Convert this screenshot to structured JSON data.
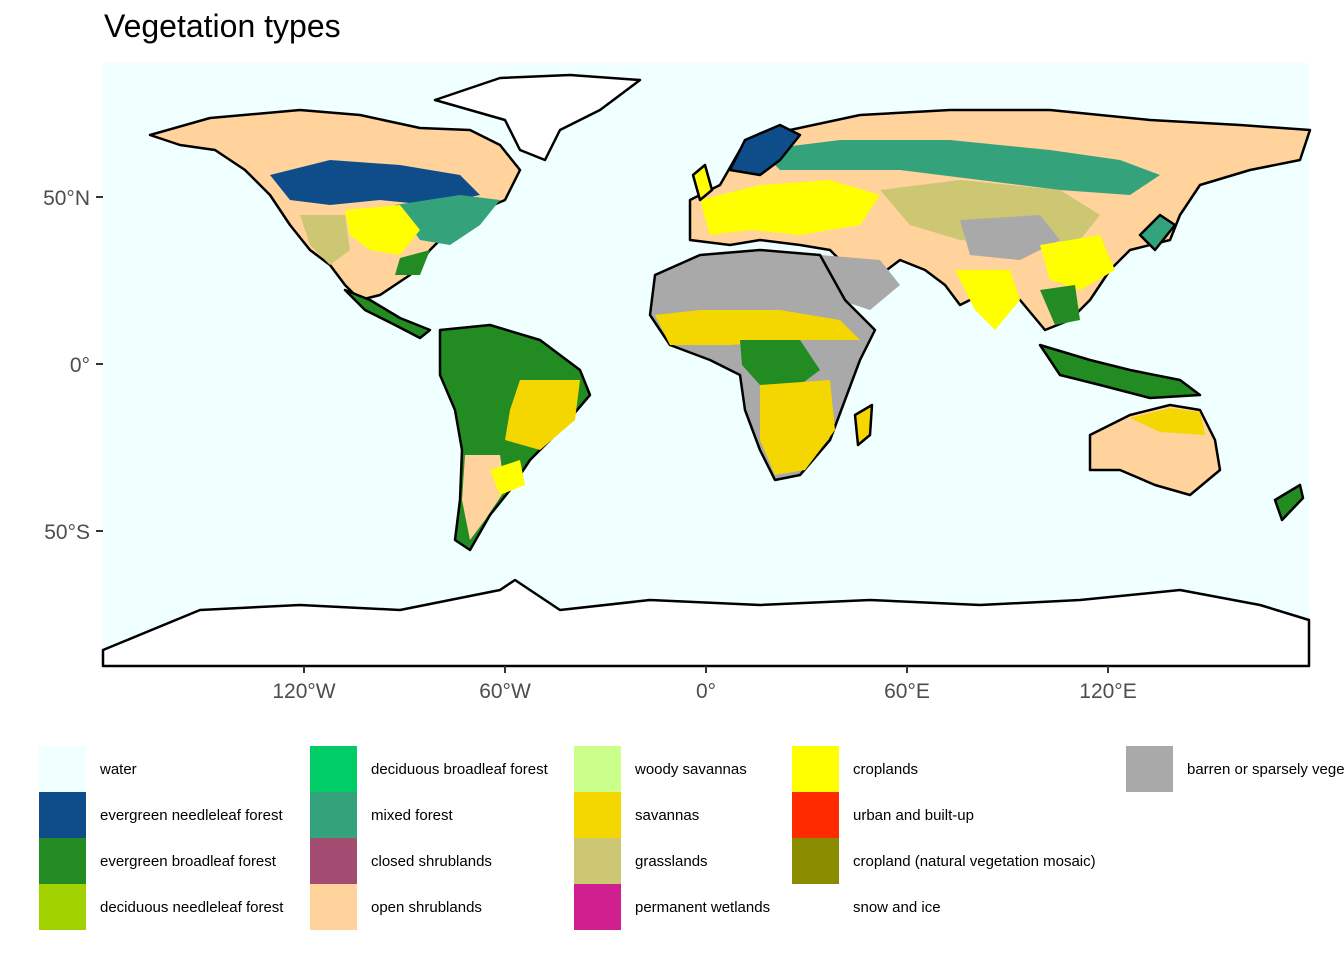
{
  "title": "Vegetation types",
  "colors": {
    "ocean": "#f0ffff",
    "coast": "#000000"
  },
  "axes": {
    "x_ticks": [
      "120°W",
      "60°W",
      "0°",
      "60°E",
      "120°E"
    ],
    "y_ticks": [
      "50°N",
      "0°",
      "50°S"
    ]
  },
  "legend": [
    {
      "label": "water",
      "color": "#f0ffff"
    },
    {
      "label": "evergreen needleleaf forest",
      "color": "#0f4d8a"
    },
    {
      "label": "evergreen broadleaf forest",
      "color": "#228b22"
    },
    {
      "label": "deciduous needleleaf forest",
      "color": "#a1d200"
    },
    {
      "label": "deciduous broadleaf forest",
      "color": "#00cd66"
    },
    {
      "label": "mixed forest",
      "color": "#34a37b"
    },
    {
      "label": "closed shrublands",
      "color": "#a34c72"
    },
    {
      "label": "open shrublands",
      "color": "#ffd39b"
    },
    {
      "label": "woody savannas",
      "color": "#c9ff8a"
    },
    {
      "label": "savannas",
      "color": "#f4d700"
    },
    {
      "label": "grasslands",
      "color": "#cdc673"
    },
    {
      "label": "permanent wetlands",
      "color": "#d01f8e"
    },
    {
      "label": "croplands",
      "color": "#ffff00"
    },
    {
      "label": "urban and built-up",
      "color": "#ff2a00"
    },
    {
      "label": "cropland (natural vegetation mosaic)",
      "color": "#8b8b00"
    },
    {
      "label": "snow and ice",
      "color": "#ffffff"
    },
    {
      "label": "barren or sparsely vegetated",
      "color": "#a9a9a9"
    }
  ]
}
